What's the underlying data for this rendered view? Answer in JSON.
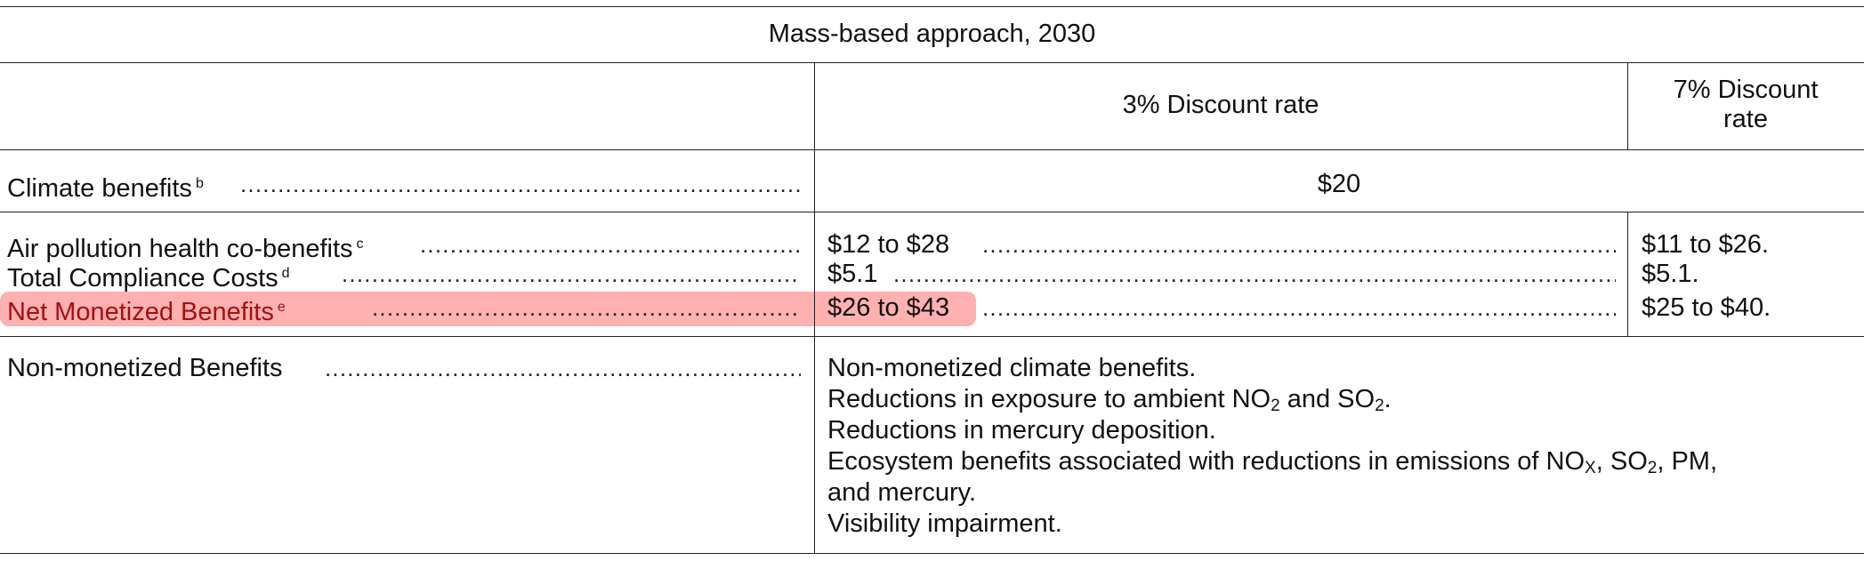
{
  "title": "Mass-based approach, 2030",
  "headers": {
    "col2": "3% Discount rate",
    "col3_line1": "7% Discount",
    "col3_line2": "rate"
  },
  "rows": {
    "climate": {
      "label": "Climate benefits",
      "footnote": "b",
      "value": "$20"
    },
    "air": {
      "label": "Air pollution health co-benefits",
      "footnote": "c",
      "v3": "$12 to $28",
      "v7": "$11 to $26."
    },
    "costs": {
      "label": "Total Compliance Costs",
      "footnote": "d",
      "v3": "$5.1",
      "v7": "$5.1."
    },
    "net": {
      "label": "Net Monetized Benefits",
      "footnote": "e",
      "v3": "$26 to $43",
      "v7": "$25 to $40."
    },
    "nonmon": {
      "label": "Non-monetized Benefits",
      "l1": "Non-monetized climate benefits.",
      "l2a": "Reductions in exposure to ambient NO",
      "l2sub1": "2",
      "l2b": " and SO",
      "l2sub2": "2",
      "l2c": ".",
      "l3": "Reductions in mercury deposition.",
      "l4a": "Ecosystem benefits associated with reductions in emissions of NO",
      "l4sub1": "X",
      "l4b": ", SO",
      "l4sub2": "2",
      "l4c": ", PM,",
      "l5": "and mercury.",
      "l6": "Visibility impairment."
    }
  },
  "colors": {
    "highlight": "#ff5050"
  }
}
